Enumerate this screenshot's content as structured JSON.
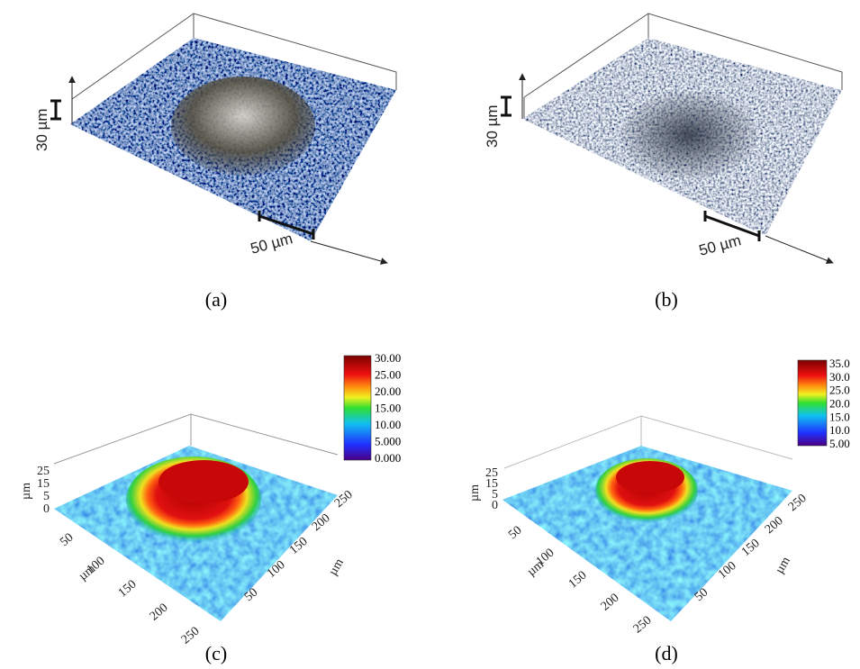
{
  "panels": [
    {
      "caption": "(a)",
      "z_scale": "30 µm",
      "x_scale": "50 µm"
    },
    {
      "caption": "(b)",
      "z_scale": "30 µm",
      "x_scale": "50 µm"
    },
    {
      "caption": "(c)",
      "colorbar": [
        "30.00",
        "25.00",
        "20.00",
        "15.00",
        "10.00",
        "5.000",
        "0.000"
      ],
      "z_axis": {
        "label": "µm",
        "ticks": [
          "25",
          "15",
          "5",
          "0"
        ]
      },
      "x_axis": {
        "label": "µm",
        "ticks": [
          "50",
          "100",
          "150",
          "200",
          "250"
        ]
      },
      "y_axis": {
        "label": "µm",
        "ticks": [
          "50",
          "100",
          "150",
          "200",
          "250"
        ]
      }
    },
    {
      "caption": "(d)",
      "colorbar": [
        "35.0",
        "30.0",
        "25.0",
        "20.0",
        "15.0",
        "10.0",
        "5.00"
      ],
      "z_axis": {
        "label": "µm",
        "ticks": [
          "25",
          "15",
          "5",
          "0"
        ]
      },
      "x_axis": {
        "label": "µm",
        "ticks": [
          "50",
          "100",
          "150",
          "200",
          "250"
        ]
      },
      "y_axis": {
        "label": "µm",
        "ticks": [
          "50",
          "100",
          "150",
          "200",
          "250"
        ]
      }
    }
  ]
}
